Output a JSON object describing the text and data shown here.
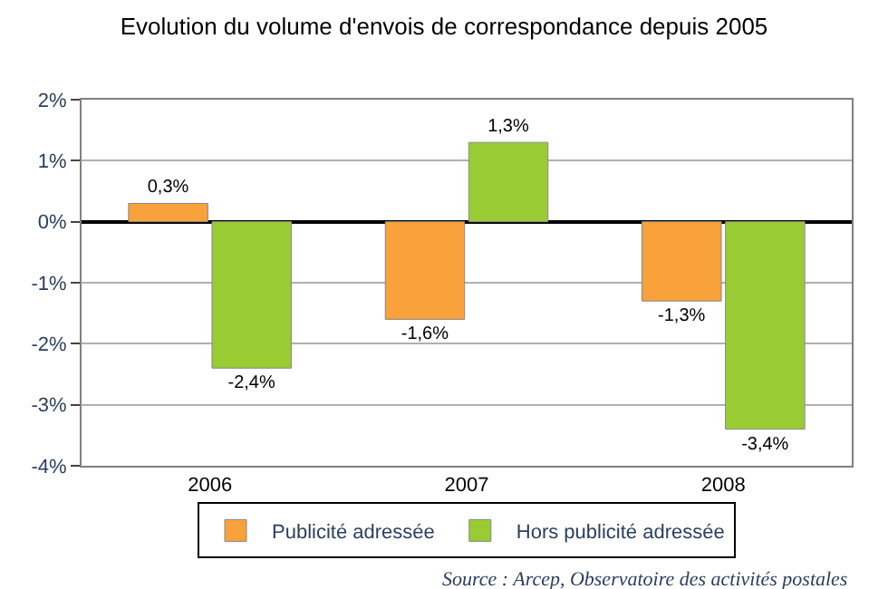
{
  "chart_data": {
    "type": "bar",
    "title": "Evolution du volume d'envois de correspondance depuis 2005",
    "categories": [
      "2006",
      "2007",
      "2008"
    ],
    "series": [
      {
        "name": "Publicité adressée",
        "color": "#f9a13a",
        "values": [
          0.3,
          -1.6,
          -1.3
        ],
        "value_labels": [
          "0,3%",
          "-1,6%",
          "-1,3%"
        ]
      },
      {
        "name": "Hors publicité adressée",
        "color": "#99cc33",
        "values": [
          -2.4,
          1.3,
          -3.4
        ],
        "value_labels": [
          "-2,4%",
          "1,3%",
          "-3,4%"
        ]
      }
    ],
    "ylim": [
      -4,
      2
    ],
    "yticks": [
      {
        "value": 2,
        "label": "2%"
      },
      {
        "value": 1,
        "label": "1%"
      },
      {
        "value": 0,
        "label": "0%"
      },
      {
        "value": -1,
        "label": "-1%"
      },
      {
        "value": -2,
        "label": "-2%"
      },
      {
        "value": -3,
        "label": "-3%"
      },
      {
        "value": -4,
        "label": "-4%"
      }
    ],
    "grid": "y",
    "legend": "bottom",
    "annotations": [
      "Source : Arcep, Observatoire des activités postales"
    ]
  }
}
